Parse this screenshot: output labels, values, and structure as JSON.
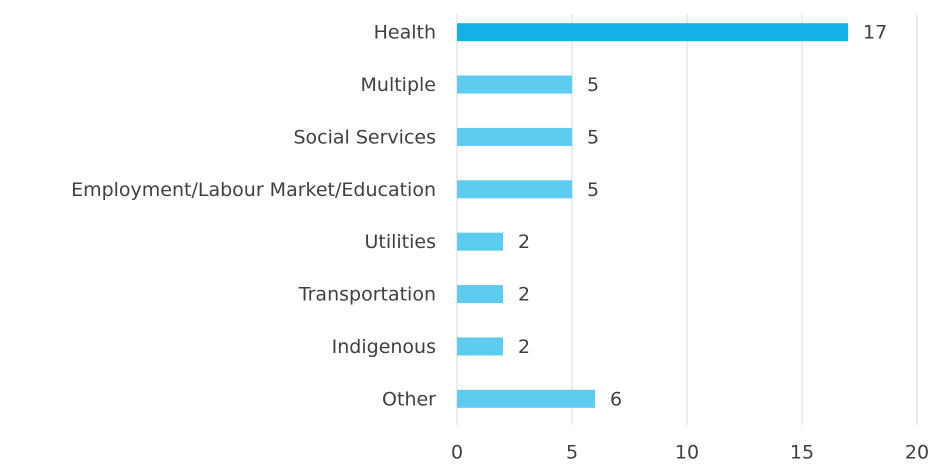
{
  "chart_data": {
    "type": "barh",
    "categories": [
      "Health",
      "Multiple",
      "Social Services",
      "Employment/Labour Market/Education",
      "Utilities",
      "Transportation",
      "Indigenous",
      "Other"
    ],
    "values": [
      17,
      5,
      5,
      5,
      2,
      2,
      2,
      6
    ],
    "colors": [
      "#14b1e7",
      "#5ecbf0",
      "#5ecbf0",
      "#5ecbf0",
      "#5ecbf0",
      "#5ecbf0",
      "#5ecbf0",
      "#5ecbf0"
    ],
    "xlim": [
      0,
      20
    ],
    "xticks": [
      0,
      5,
      10,
      15,
      20
    ],
    "grid": true
  }
}
